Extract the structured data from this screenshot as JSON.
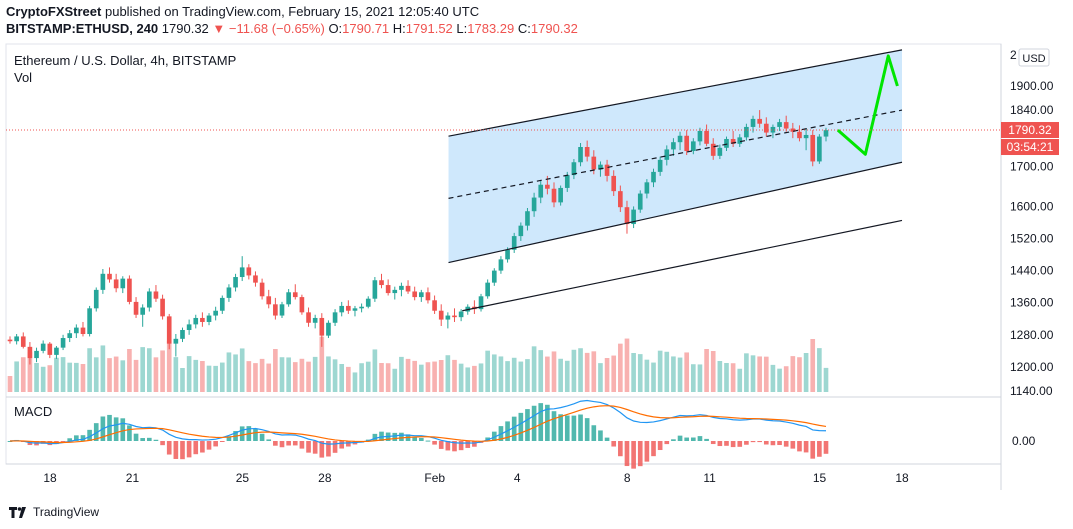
{
  "header": {
    "publisher": "CryptoFXStreet",
    "published_text": "published on TradingView.com, February 15, 2021 12:05:40 UTC",
    "symbol": "BITSTAMP:ETHUSD, 240",
    "last_price": "1790.32",
    "change_arrow": "▼",
    "change": "−11.68 (−0.65%)",
    "ohlc": [
      {
        "label": "O:",
        "value": "1790.71"
      },
      {
        "label": "H:",
        "value": "1791.52"
      },
      {
        "label": "L:",
        "value": "1783.29"
      },
      {
        "label": "C:",
        "value": "1790.32"
      }
    ]
  },
  "legend": {
    "title": "Ethereum / U.S. Dollar, 4h, BITSTAMP",
    "volume_label": "Vol",
    "macd_label": "MACD",
    "currency": "USD"
  },
  "price_axis": {
    "ticks": [
      "1900.00",
      "1840.00",
      "1790.32",
      "1700.00",
      "1600.00",
      "1520.00",
      "1440.00",
      "1360.00",
      "1280.00",
      "1200.00",
      "1140.00"
    ],
    "top_partial_tick": "2"
  },
  "current_price_badge": {
    "price": "1790.32",
    "countdown": "03:54:21"
  },
  "macd_axis": {
    "ticks": [
      "0.00"
    ]
  },
  "time_axis": {
    "labels": [
      "18",
      "21",
      "25",
      "28",
      "Feb",
      "4",
      "8",
      "11",
      "15",
      "18"
    ]
  },
  "footer": {
    "brand": "TradingView"
  },
  "colors": {
    "up": "#26a69a",
    "down": "#ef5350",
    "channel_fill": "#bbdefb",
    "projection": "#00e600",
    "macd_line": "#2196f3",
    "signal_line": "#ff6d00",
    "price_line": "#ef5350"
  },
  "chart_data": {
    "type": "candlestick",
    "symbol": "ETHUSD",
    "interval": "4h",
    "ylim": [
      1120,
      1990
    ],
    "channel_lines": [
      {
        "style": "solid",
        "from": {
          "date": "2021-02-01 12:00",
          "price": 1775
        },
        "to": {
          "date": "2021-02-18 00:00",
          "price": 1990
        }
      },
      {
        "style": "dashed",
        "from": {
          "date": "2021-02-01 12:00",
          "price": 1620
        },
        "to": {
          "date": "2021-02-18 00:00",
          "price": 1840
        }
      },
      {
        "style": "solid",
        "from": {
          "date": "2021-02-01 12:00",
          "price": 1460
        },
        "to": {
          "date": "2021-02-18 00:00",
          "price": 1710
        }
      },
      {
        "style": "solid",
        "from": {
          "date": "2021-02-02 00:00",
          "price": 1340
        },
        "to": {
          "date": "2021-02-18 00:00",
          "price": 1565
        }
      }
    ],
    "projection_path": [
      {
        "date": "2021-02-15 16:00",
        "price": 1790
      },
      {
        "date": "2021-02-16 16:00",
        "price": 1730
      },
      {
        "date": "2021-02-17 12:00",
        "price": 1975
      },
      {
        "date": "2021-02-17 20:00",
        "price": 1900
      }
    ],
    "candles_ohlc": [
      [
        1268,
        1276,
        1258,
        1264
      ],
      [
        1264,
        1282,
        1256,
        1276
      ],
      [
        1276,
        1286,
        1246,
        1250
      ],
      [
        1250,
        1262,
        1206,
        1222
      ],
      [
        1222,
        1248,
        1212,
        1240
      ],
      [
        1240,
        1266,
        1234,
        1258
      ],
      [
        1258,
        1262,
        1222,
        1230
      ],
      [
        1230,
        1252,
        1220,
        1248
      ],
      [
        1248,
        1280,
        1242,
        1272
      ],
      [
        1272,
        1292,
        1262,
        1284
      ],
      [
        1284,
        1306,
        1272,
        1298
      ],
      [
        1298,
        1312,
        1276,
        1282
      ],
      [
        1282,
        1352,
        1276,
        1346
      ],
      [
        1346,
        1398,
        1338,
        1392
      ],
      [
        1392,
        1444,
        1382,
        1432
      ],
      [
        1432,
        1448,
        1410,
        1418
      ],
      [
        1418,
        1432,
        1386,
        1396
      ],
      [
        1396,
        1426,
        1384,
        1420
      ],
      [
        1420,
        1428,
        1356,
        1362
      ],
      [
        1362,
        1374,
        1322,
        1330
      ],
      [
        1330,
        1356,
        1300,
        1348
      ],
      [
        1348,
        1396,
        1338,
        1388
      ],
      [
        1388,
        1404,
        1362,
        1370
      ],
      [
        1370,
        1380,
        1318,
        1326
      ],
      [
        1326,
        1332,
        1244,
        1258
      ],
      [
        1258,
        1282,
        1226,
        1270
      ],
      [
        1270,
        1298,
        1262,
        1292
      ],
      [
        1292,
        1318,
        1280,
        1306
      ],
      [
        1306,
        1330,
        1296,
        1322
      ],
      [
        1322,
        1336,
        1300,
        1312
      ],
      [
        1312,
        1334,
        1304,
        1328
      ],
      [
        1328,
        1350,
        1316,
        1340
      ],
      [
        1340,
        1378,
        1332,
        1372
      ],
      [
        1372,
        1406,
        1362,
        1398
      ],
      [
        1398,
        1432,
        1388,
        1424
      ],
      [
        1424,
        1476,
        1414,
        1448
      ],
      [
        1448,
        1456,
        1418,
        1428
      ],
      [
        1428,
        1438,
        1400,
        1410
      ],
      [
        1410,
        1420,
        1368,
        1376
      ],
      [
        1376,
        1392,
        1346,
        1356
      ],
      [
        1356,
        1372,
        1318,
        1328
      ],
      [
        1328,
        1362,
        1322,
        1356
      ],
      [
        1356,
        1394,
        1350,
        1386
      ],
      [
        1386,
        1406,
        1368,
        1374
      ],
      [
        1374,
        1380,
        1330,
        1336
      ],
      [
        1336,
        1348,
        1300,
        1310
      ],
      [
        1310,
        1330,
        1296,
        1322
      ],
      [
        1322,
        1334,
        1250,
        1278
      ],
      [
        1278,
        1316,
        1272,
        1310
      ],
      [
        1310,
        1344,
        1302,
        1336
      ],
      [
        1336,
        1362,
        1326,
        1352
      ],
      [
        1352,
        1366,
        1332,
        1340
      ],
      [
        1340,
        1352,
        1326,
        1346
      ],
      [
        1346,
        1358,
        1336,
        1350
      ],
      [
        1350,
        1376,
        1346,
        1370
      ],
      [
        1370,
        1424,
        1362,
        1416
      ],
      [
        1416,
        1432,
        1396,
        1404
      ],
      [
        1404,
        1418,
        1378,
        1384
      ],
      [
        1384,
        1400,
        1368,
        1392
      ],
      [
        1392,
        1410,
        1376,
        1402
      ],
      [
        1402,
        1416,
        1382,
        1388
      ],
      [
        1388,
        1400,
        1366,
        1374
      ],
      [
        1374,
        1392,
        1362,
        1386
      ],
      [
        1386,
        1398,
        1358,
        1366
      ],
      [
        1366,
        1378,
        1332,
        1340
      ],
      [
        1340,
        1356,
        1302,
        1318
      ],
      [
        1318,
        1336,
        1296,
        1328
      ],
      [
        1328,
        1346,
        1312,
        1324
      ],
      [
        1324,
        1344,
        1314,
        1338
      ],
      [
        1338,
        1356,
        1330,
        1350
      ],
      [
        1350,
        1366,
        1332,
        1344
      ],
      [
        1344,
        1382,
        1338,
        1376
      ],
      [
        1376,
        1418,
        1370,
        1410
      ],
      [
        1410,
        1446,
        1402,
        1440
      ],
      [
        1440,
        1476,
        1432,
        1468
      ],
      [
        1468,
        1498,
        1460,
        1492
      ],
      [
        1492,
        1534,
        1484,
        1526
      ],
      [
        1526,
        1560,
        1514,
        1552
      ],
      [
        1552,
        1596,
        1540,
        1588
      ],
      [
        1588,
        1634,
        1574,
        1622
      ],
      [
        1622,
        1664,
        1608,
        1654
      ],
      [
        1654,
        1676,
        1630,
        1644
      ],
      [
        1644,
        1660,
        1598,
        1610
      ],
      [
        1610,
        1652,
        1602,
        1646
      ],
      [
        1646,
        1686,
        1636,
        1678
      ],
      [
        1678,
        1718,
        1668,
        1710
      ],
      [
        1710,
        1758,
        1700,
        1748
      ],
      [
        1748,
        1764,
        1712,
        1724
      ],
      [
        1724,
        1740,
        1680,
        1692
      ],
      [
        1692,
        1712,
        1674,
        1704
      ],
      [
        1704,
        1716,
        1662,
        1676
      ],
      [
        1676,
        1690,
        1626,
        1638
      ],
      [
        1638,
        1652,
        1586,
        1598
      ],
      [
        1598,
        1614,
        1532,
        1556
      ],
      [
        1556,
        1600,
        1546,
        1592
      ],
      [
        1592,
        1640,
        1584,
        1632
      ],
      [
        1632,
        1668,
        1620,
        1660
      ],
      [
        1660,
        1694,
        1648,
        1686
      ],
      [
        1686,
        1724,
        1676,
        1716
      ],
      [
        1716,
        1752,
        1702,
        1742
      ],
      [
        1742,
        1770,
        1726,
        1760
      ],
      [
        1760,
        1786,
        1740,
        1776
      ],
      [
        1776,
        1790,
        1728,
        1738
      ],
      [
        1738,
        1770,
        1730,
        1762
      ],
      [
        1762,
        1796,
        1752,
        1788
      ],
      [
        1788,
        1804,
        1750,
        1756
      ],
      [
        1756,
        1770,
        1716,
        1726
      ],
      [
        1726,
        1754,
        1718,
        1746
      ],
      [
        1746,
        1774,
        1738,
        1768
      ],
      [
        1768,
        1788,
        1748,
        1756
      ],
      [
        1756,
        1780,
        1748,
        1772
      ],
      [
        1772,
        1806,
        1764,
        1798
      ],
      [
        1798,
        1826,
        1784,
        1818
      ],
      [
        1818,
        1840,
        1796,
        1806
      ],
      [
        1806,
        1822,
        1774,
        1784
      ],
      [
        1784,
        1804,
        1770,
        1798
      ],
      [
        1798,
        1818,
        1788,
        1810
      ],
      [
        1810,
        1826,
        1786,
        1794
      ],
      [
        1794,
        1808,
        1770,
        1786
      ],
      [
        1786,
        1802,
        1762,
        1770
      ],
      [
        1770,
        1794,
        1740,
        1778
      ],
      [
        1778,
        1790,
        1700,
        1712
      ],
      [
        1712,
        1780,
        1706,
        1774
      ],
      [
        1774,
        1796,
        1762,
        1790
      ]
    ],
    "volume_scale_note": "relative",
    "macd_histogram_note": "oscillates near 0.00"
  }
}
